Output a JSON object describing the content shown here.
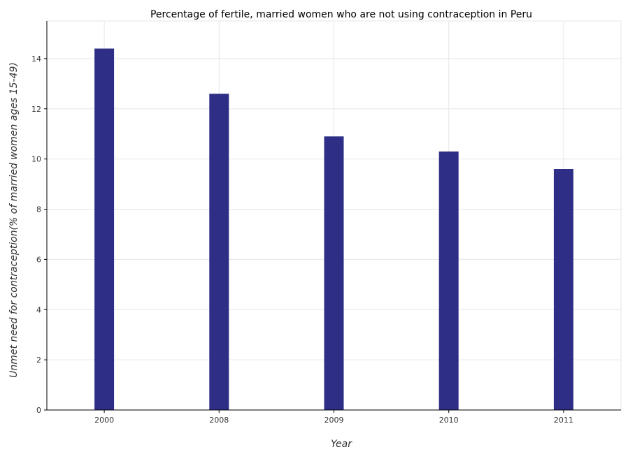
{
  "chart_data": {
    "type": "bar",
    "title": "Percentage of fertile, married women who are not using contraception in Peru",
    "xlabel": "Year",
    "ylabel": "Unmet need for contraception(% of married women ages 15-49)",
    "categories": [
      "2000",
      "2008",
      "2009",
      "2010",
      "2011"
    ],
    "values": [
      14.4,
      12.6,
      10.9,
      10.3,
      9.6
    ],
    "ylim": [
      0,
      15.5
    ],
    "yticks": [
      0,
      2,
      4,
      6,
      8,
      10,
      12,
      14
    ],
    "grid": true,
    "bar_color": "#2e2e87"
  }
}
